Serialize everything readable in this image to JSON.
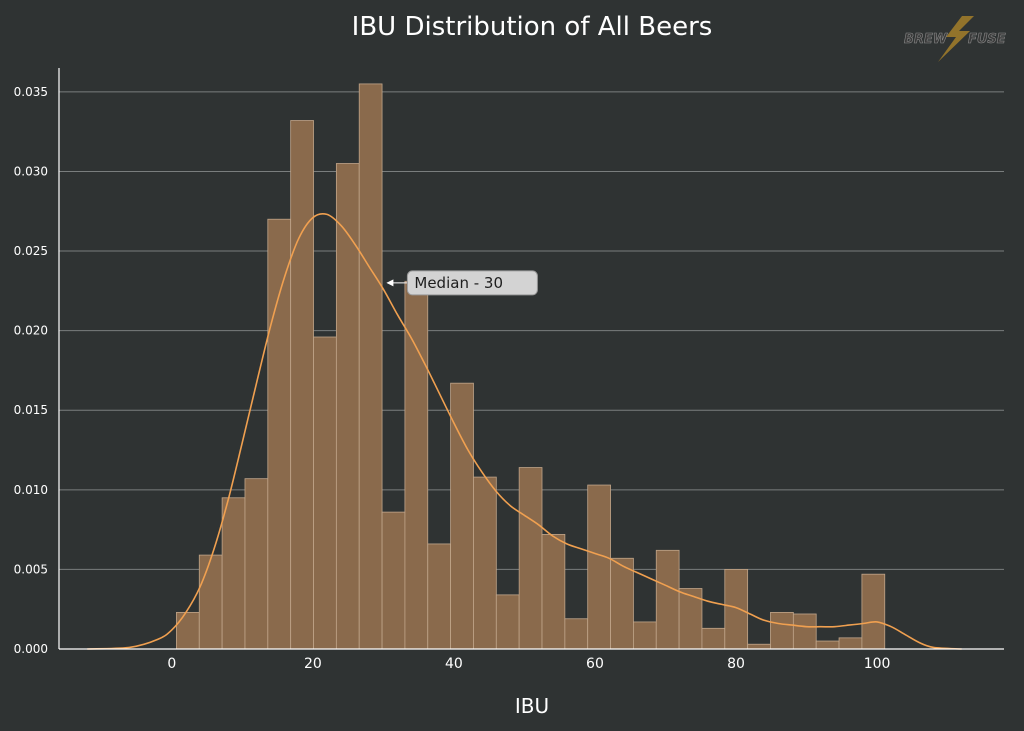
{
  "chart_data": {
    "type": "bar",
    "title": "IBU Distribution of All Beers",
    "xlabel": "IBU",
    "ylabel": "",
    "xlim": [
      -16,
      118
    ],
    "ylim": [
      0,
      0.0365
    ],
    "yticks": [
      0.0,
      0.005,
      0.01,
      0.015,
      0.02,
      0.025,
      0.03,
      0.035
    ],
    "ytick_labels": [
      "0.000",
      "0.005",
      "0.010",
      "0.015",
      "0.020",
      "0.025",
      "0.030",
      "0.035"
    ],
    "xticks": [
      0,
      20,
      40,
      60,
      80,
      100
    ],
    "xtick_labels": [
      "0",
      "20",
      "40",
      "60",
      "80",
      "100"
    ],
    "grid": "horizontal",
    "bin_edges": [
      0.65,
      3.89,
      7.13,
      10.37,
      13.61,
      16.85,
      20.09,
      23.33,
      26.57,
      29.81,
      33.05,
      36.29,
      39.53,
      42.77,
      46.01,
      49.25,
      52.49,
      55.73,
      58.97,
      62.21,
      65.45,
      68.69,
      71.93,
      75.17,
      78.41,
      81.65,
      84.89,
      88.13,
      91.37,
      94.61,
      97.85,
      101.09
    ],
    "values": [
      0.0023,
      0.0059,
      0.0095,
      0.0107,
      0.027,
      0.0332,
      0.0196,
      0.0305,
      0.0355,
      0.0086,
      0.0231,
      0.0066,
      0.0167,
      0.0108,
      0.0034,
      0.0114,
      0.0072,
      0.0019,
      0.0103,
      0.0057,
      0.0017,
      0.0062,
      0.0038,
      0.0013,
      0.005,
      0.0003,
      0.0023,
      0.0022,
      0.0005,
      0.0007,
      0.0047
    ],
    "kde": {
      "x": [
        -12,
        -6,
        -2,
        0,
        2,
        4,
        6,
        8,
        10,
        12,
        14,
        16,
        18,
        20,
        22,
        24,
        26,
        28,
        30,
        32,
        34,
        36,
        38,
        40,
        42,
        44,
        46,
        48,
        50,
        52,
        54,
        56,
        58,
        60,
        62,
        64,
        66,
        68,
        70,
        72,
        74,
        76,
        78,
        80,
        82,
        84,
        86,
        88,
        90,
        92,
        94,
        96,
        98,
        100,
        102,
        104,
        106,
        108,
        112
      ],
      "y": [
        0.0,
        0.0001,
        0.0006,
        0.0012,
        0.0023,
        0.0039,
        0.0063,
        0.0094,
        0.013,
        0.0167,
        0.0203,
        0.0234,
        0.0258,
        0.0271,
        0.0273,
        0.0266,
        0.0254,
        0.024,
        0.0226,
        0.021,
        0.0195,
        0.0178,
        0.016,
        0.0142,
        0.0125,
        0.0111,
        0.0099,
        0.009,
        0.0084,
        0.0078,
        0.0071,
        0.0066,
        0.0063,
        0.006,
        0.0057,
        0.0052,
        0.0048,
        0.0044,
        0.004,
        0.0036,
        0.0033,
        0.003,
        0.0028,
        0.0026,
        0.0022,
        0.0018,
        0.0016,
        0.0015,
        0.0014,
        0.0014,
        0.0014,
        0.0015,
        0.0016,
        0.0017,
        0.0014,
        0.0009,
        0.0004,
        0.0001,
        0.0
      ]
    },
    "annotations": [
      {
        "text": "Median - 30",
        "x": 30,
        "y": 0.023
      }
    ],
    "colors": {
      "background": "#2f3333",
      "bar_fill": "#8a6a4c",
      "bar_stroke": "#c0a58a",
      "kde_line": "#f0a050",
      "grid": "#7a7e7e",
      "axis": "#ffffff",
      "annotation_bg": "#d3d3d3"
    }
  },
  "logo": {
    "text_left": "BREW",
    "text_right": "FUSE"
  }
}
